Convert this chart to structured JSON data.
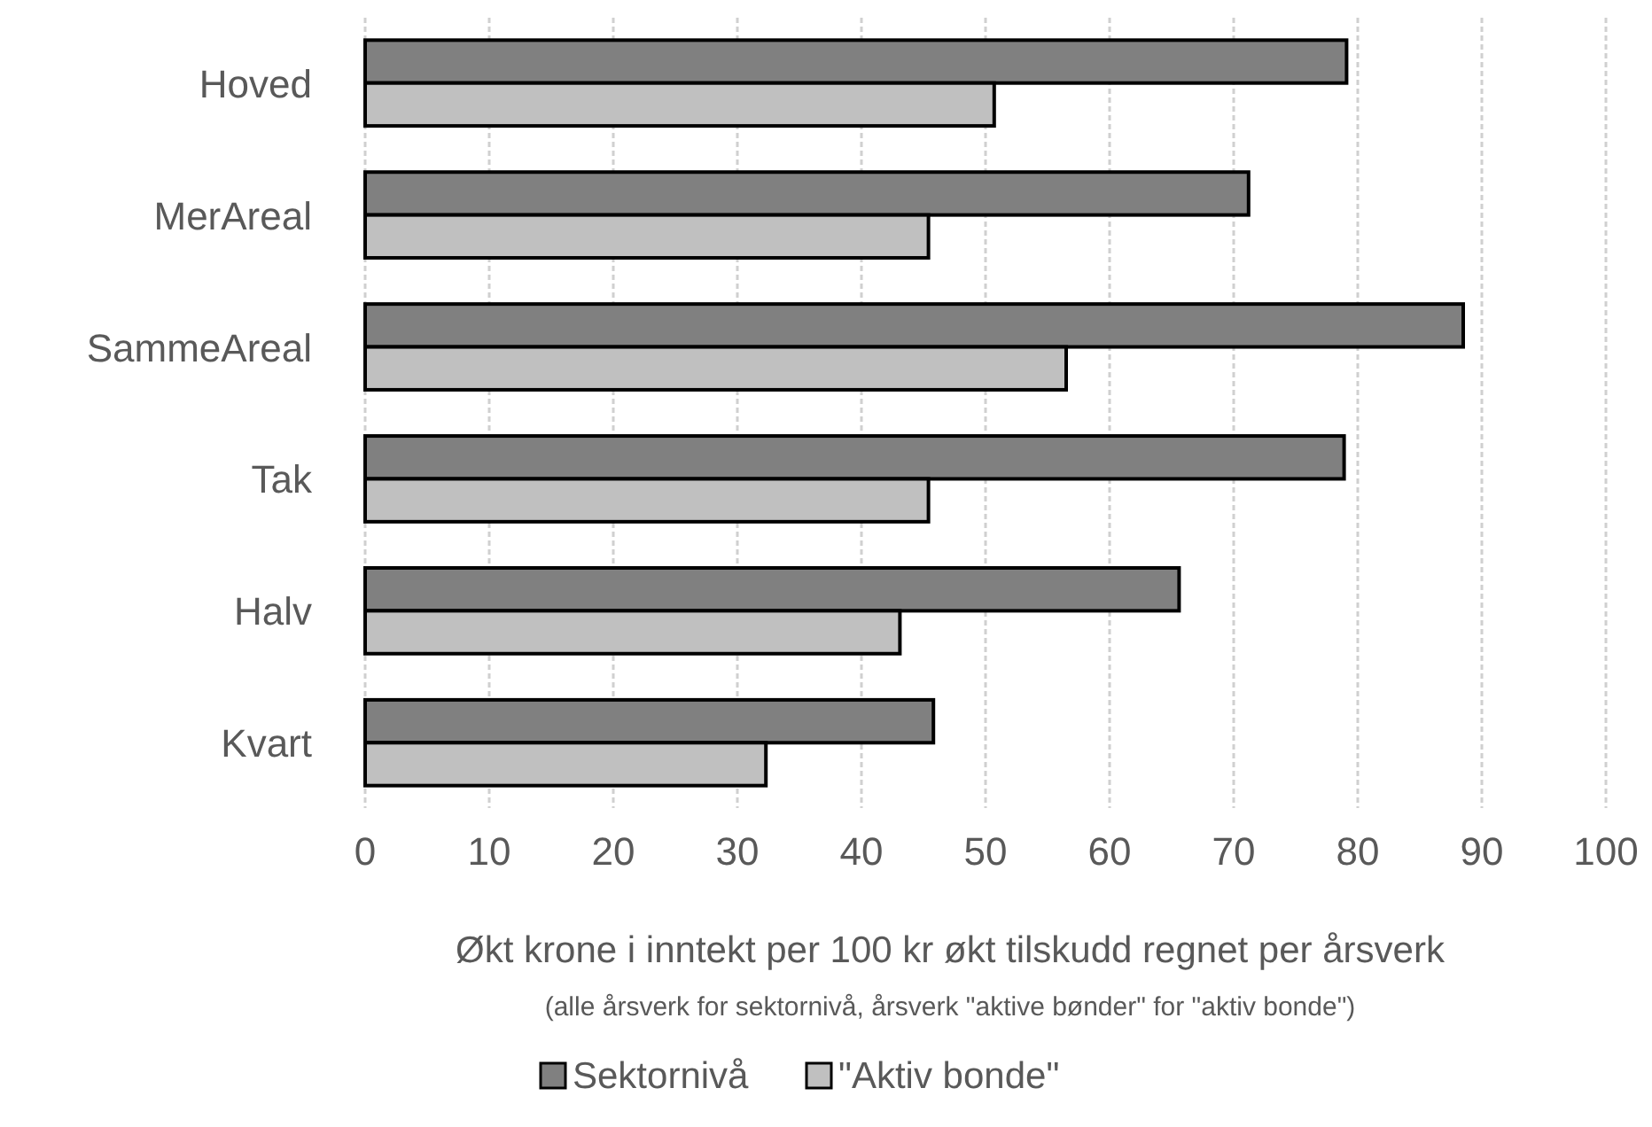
{
  "chart_data": {
    "type": "bar",
    "orientation": "horizontal",
    "xlabel": "Økt krone i inntekt per 100 kr økt tilskudd regnet per årsverk",
    "annotations": [
      "(alle årsverk for sektornivå, årsverk \"aktive bønder\" for \"aktiv bonde\")"
    ],
    "categories": [
      "Hoved",
      "MerAreal",
      "SammeAreal",
      "Tak",
      "Halv",
      "Kvart"
    ],
    "series": [
      {
        "name": "Sektornivå",
        "color": "#808080",
        "values": [
          79.1,
          71.2,
          88.5,
          78.9,
          65.6,
          45.8
        ]
      },
      {
        "name": "\"Aktiv bonde\"",
        "color": "#c0c0c0",
        "values": [
          50.7,
          45.4,
          56.5,
          45.4,
          43.1,
          32.3
        ]
      }
    ],
    "xlim": [
      0,
      100
    ],
    "xticks": [
      0,
      10,
      20,
      30,
      40,
      50,
      60,
      70,
      80,
      90,
      100
    ],
    "grid": "x",
    "legend": "bottom"
  }
}
